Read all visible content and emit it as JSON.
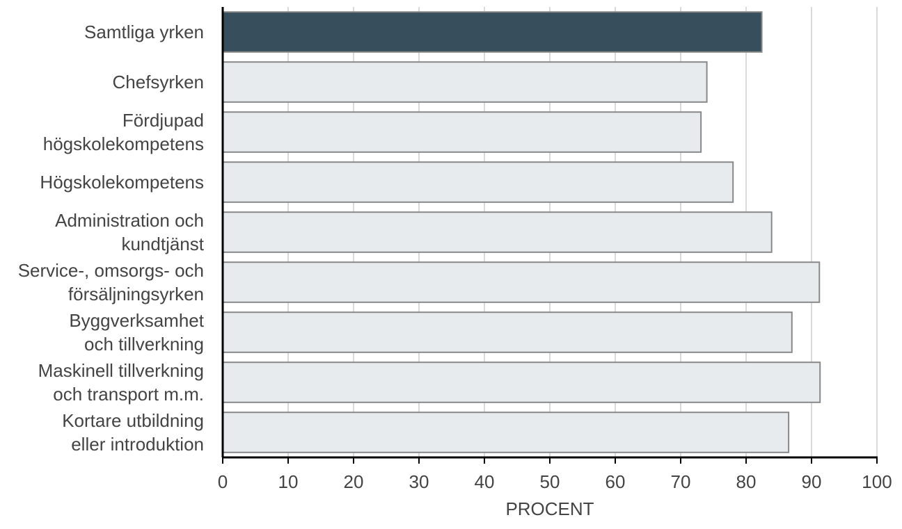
{
  "chart_data": {
    "type": "barh",
    "categories": [
      "Samtliga yrken",
      "Chefsyrken",
      "Fördjupad\nhögskolekompetens",
      "Högskolekompetens",
      "Administration och\nkundtjänst",
      "Service-, omsorgs- och\nförsäljningsyrken",
      "Byggverksamhet\noch tillverkning",
      "Maskinell tillverkning\noch transport m.m.",
      "Kortare utbildning\neller introduktion"
    ],
    "values": [
      82.4,
      74.0,
      73.1,
      78.0,
      83.9,
      91.2,
      87.0,
      91.3,
      86.5
    ],
    "colors": [
      "#374f5c",
      "#e8ebee",
      "#e8ebee",
      "#e8ebee",
      "#e8ebee",
      "#e8ebee",
      "#e8ebee",
      "#e8ebee",
      "#e8ebee"
    ],
    "xlabel": "PROCENT",
    "xlim": [
      0,
      100
    ],
    "xticks": [
      0,
      10,
      20,
      30,
      40,
      50,
      60,
      70,
      80,
      90,
      100
    ],
    "grid": true
  }
}
